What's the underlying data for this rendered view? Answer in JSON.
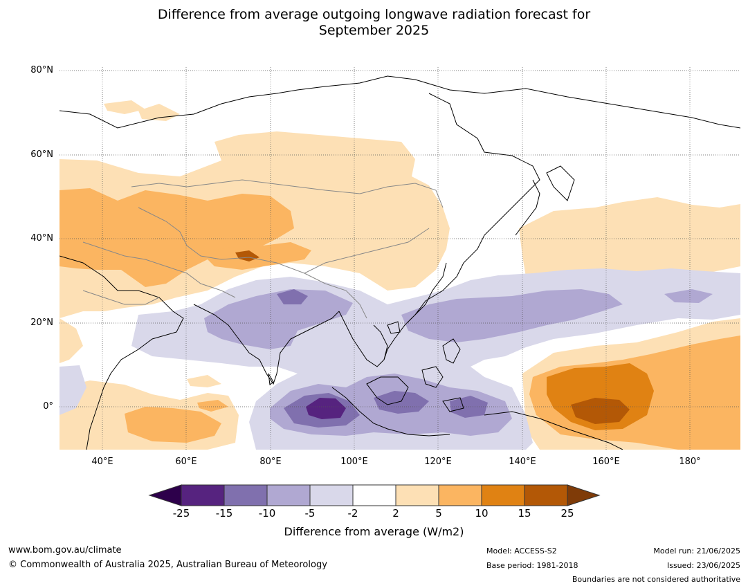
{
  "title_line1": "Difference from average outgoing longwave radiation forecast for",
  "title_line2": "September 2025",
  "lat_labels": [
    "80°N",
    "60°N",
    "40°N",
    "20°N",
    "0°"
  ],
  "lon_labels": [
    "40°E",
    "60°E",
    "80°E",
    "100°E",
    "120°E",
    "140°E",
    "160°E",
    "180°"
  ],
  "colorbar": {
    "title": "Difference from average (W/m2)",
    "ticks": [
      "-25",
      "-15",
      "-10",
      "-5",
      "-2",
      "2",
      "5",
      "10",
      "15",
      "25"
    ],
    "colors": [
      "#56237f",
      "#8070ae",
      "#b0a8d2",
      "#d9d8ea",
      "#ffffff",
      "#fde0b5",
      "#fbb561",
      "#e08213",
      "#b35806"
    ],
    "under_color": "#2d004b",
    "over_color": "#7f3b08"
  },
  "footer": {
    "website": "www.bom.gov.au/climate",
    "copyright": "© Commonwealth of Australia 2025, Australian Bureau of Meteorology",
    "model": "Model: ACCESS-S2",
    "base_period": "Base period: 1981-2018",
    "model_run": "Model run: 21/06/2025",
    "issued": "Issued: 23/06/2025",
    "disclaimer": "Boundaries are not considered authoritative"
  }
}
